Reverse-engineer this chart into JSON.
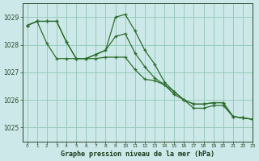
{
  "title": "Graphe pression niveau de la mer (hPa)",
  "background_color": "#cce8e8",
  "grid_color": "#99ccbb",
  "line_color": "#2d6e2d",
  "xlim": [
    -0.5,
    23
  ],
  "ylim": [
    1024.5,
    1029.5
  ],
  "yticks": [
    1025,
    1026,
    1027,
    1028,
    1029
  ],
  "xticks": [
    0,
    1,
    2,
    3,
    4,
    5,
    6,
    7,
    8,
    9,
    10,
    11,
    12,
    13,
    14,
    15,
    16,
    17,
    18,
    19,
    20,
    21,
    22,
    23
  ],
  "series": [
    [
      1028.7,
      1028.85,
      1028.85,
      1028.85,
      1028.1,
      1027.5,
      1027.5,
      1027.65,
      1027.8,
      1029.0,
      1029.1,
      1028.5,
      1027.8,
      1027.3,
      1026.65,
      1026.3,
      1026.0,
      1025.85,
      1025.85,
      1025.9,
      1025.9,
      1025.4,
      1025.35,
      null
    ],
    [
      1028.7,
      1028.85,
      1028.05,
      1027.5,
      1027.5,
      1027.5,
      1027.5,
      1027.5,
      1027.55,
      1027.55,
      1027.55,
      1027.1,
      1026.75,
      1026.7,
      1026.55,
      1026.3,
      1026.0,
      1025.85,
      1025.85,
      1025.9,
      1025.9,
      1025.4,
      1025.35,
      null
    ],
    [
      1028.7,
      1028.85,
      1028.85,
      1028.85,
      1028.1,
      1027.5,
      1027.5,
      1027.65,
      1027.8,
      1028.3,
      1028.4,
      1027.7,
      1027.2,
      1026.8,
      1026.55,
      1026.2,
      1026.0,
      1025.7,
      1025.7,
      1025.8,
      1025.8,
      1025.4,
      1025.35,
      null
    ]
  ],
  "series_full": [
    [
      1028.7,
      1028.85,
      1028.85,
      1028.85,
      1028.1,
      1027.5,
      1027.5,
      1027.65,
      1027.8,
      1029.0,
      1029.1,
      1028.5,
      1027.8,
      1027.3,
      1026.65,
      1026.3,
      1026.0,
      1025.85,
      1025.85,
      1025.9,
      1025.9,
      1025.4,
      1025.35,
      1025.3
    ],
    [
      1028.7,
      1028.85,
      1028.05,
      1027.5,
      1027.5,
      1027.5,
      1027.5,
      1027.5,
      1027.55,
      1027.55,
      1027.55,
      1027.1,
      1026.75,
      1026.7,
      1026.55,
      1026.3,
      1026.0,
      1025.85,
      1025.85,
      1025.9,
      1025.9,
      1025.4,
      1025.35,
      1025.3
    ],
    [
      1028.7,
      1028.85,
      1028.85,
      1028.85,
      1028.1,
      1027.5,
      1027.5,
      1027.65,
      1027.8,
      1028.3,
      1028.4,
      1027.7,
      1027.2,
      1026.8,
      1026.55,
      1026.2,
      1026.0,
      1025.7,
      1025.7,
      1025.8,
      1025.8,
      1025.4,
      1025.35,
      1025.3
    ]
  ]
}
